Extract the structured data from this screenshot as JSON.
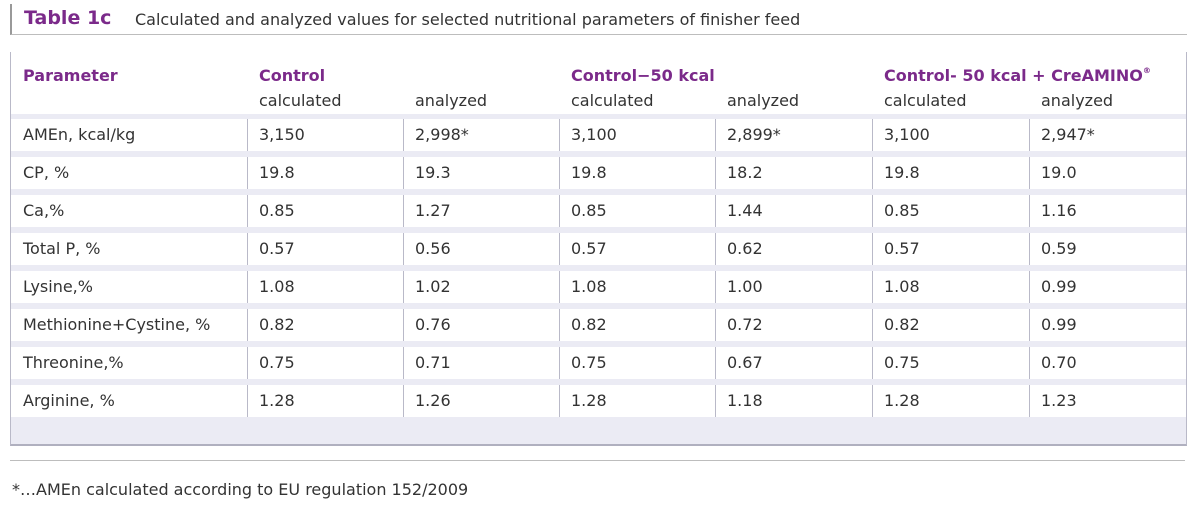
{
  "caption": {
    "label": "Table 1c",
    "text": "Calculated and analyzed values for selected nutritional parameters of finisher feed"
  },
  "table": {
    "parameter_header": "Parameter",
    "groups": [
      {
        "label": "Control",
        "sup": ""
      },
      {
        "label": "Control−50 kcal",
        "sup": ""
      },
      {
        "label": "Control- 50 kcal + CreAMINO",
        "sup": "®"
      }
    ],
    "subheaders": [
      "calculated",
      "analyzed",
      "calculated",
      "analyzed",
      "calculated",
      "analyzed"
    ],
    "rows": [
      {
        "param": "AMEn, kcal/kg",
        "values": [
          "3,150",
          "2,998*",
          "3,100",
          "2,899*",
          "3,100",
          "2,947*"
        ]
      },
      {
        "param": "CP, %",
        "values": [
          "19.8",
          "19.3",
          "19.8",
          "18.2",
          "19.8",
          "19.0"
        ]
      },
      {
        "param": "Ca,%",
        "values": [
          "0.85",
          "1.27",
          "0.85",
          "1.44",
          "0.85",
          "1.16"
        ]
      },
      {
        "param": "Total P, %",
        "values": [
          "0.57",
          "0.56",
          "0.57",
          "0.62",
          "0.57",
          "0.59"
        ]
      },
      {
        "param": "Lysine,%",
        "values": [
          "1.08",
          "1.02",
          "1.08",
          "1.00",
          "1.08",
          "0.99"
        ]
      },
      {
        "param": "Methionine+Cystine, %",
        "values": [
          "0.82",
          "0.76",
          "0.82",
          "0.72",
          "0.82",
          "0.99"
        ]
      },
      {
        "param": "Threonine,%",
        "values": [
          "0.75",
          "0.71",
          "0.75",
          "0.67",
          "0.75",
          "0.70"
        ]
      },
      {
        "param": "Arginine, %",
        "values": [
          "1.28",
          "1.26",
          "1.28",
          "1.18",
          "1.28",
          "1.23"
        ]
      }
    ]
  },
  "footnote": "*…AMEn calculated according to EU regulation 152/2009"
}
